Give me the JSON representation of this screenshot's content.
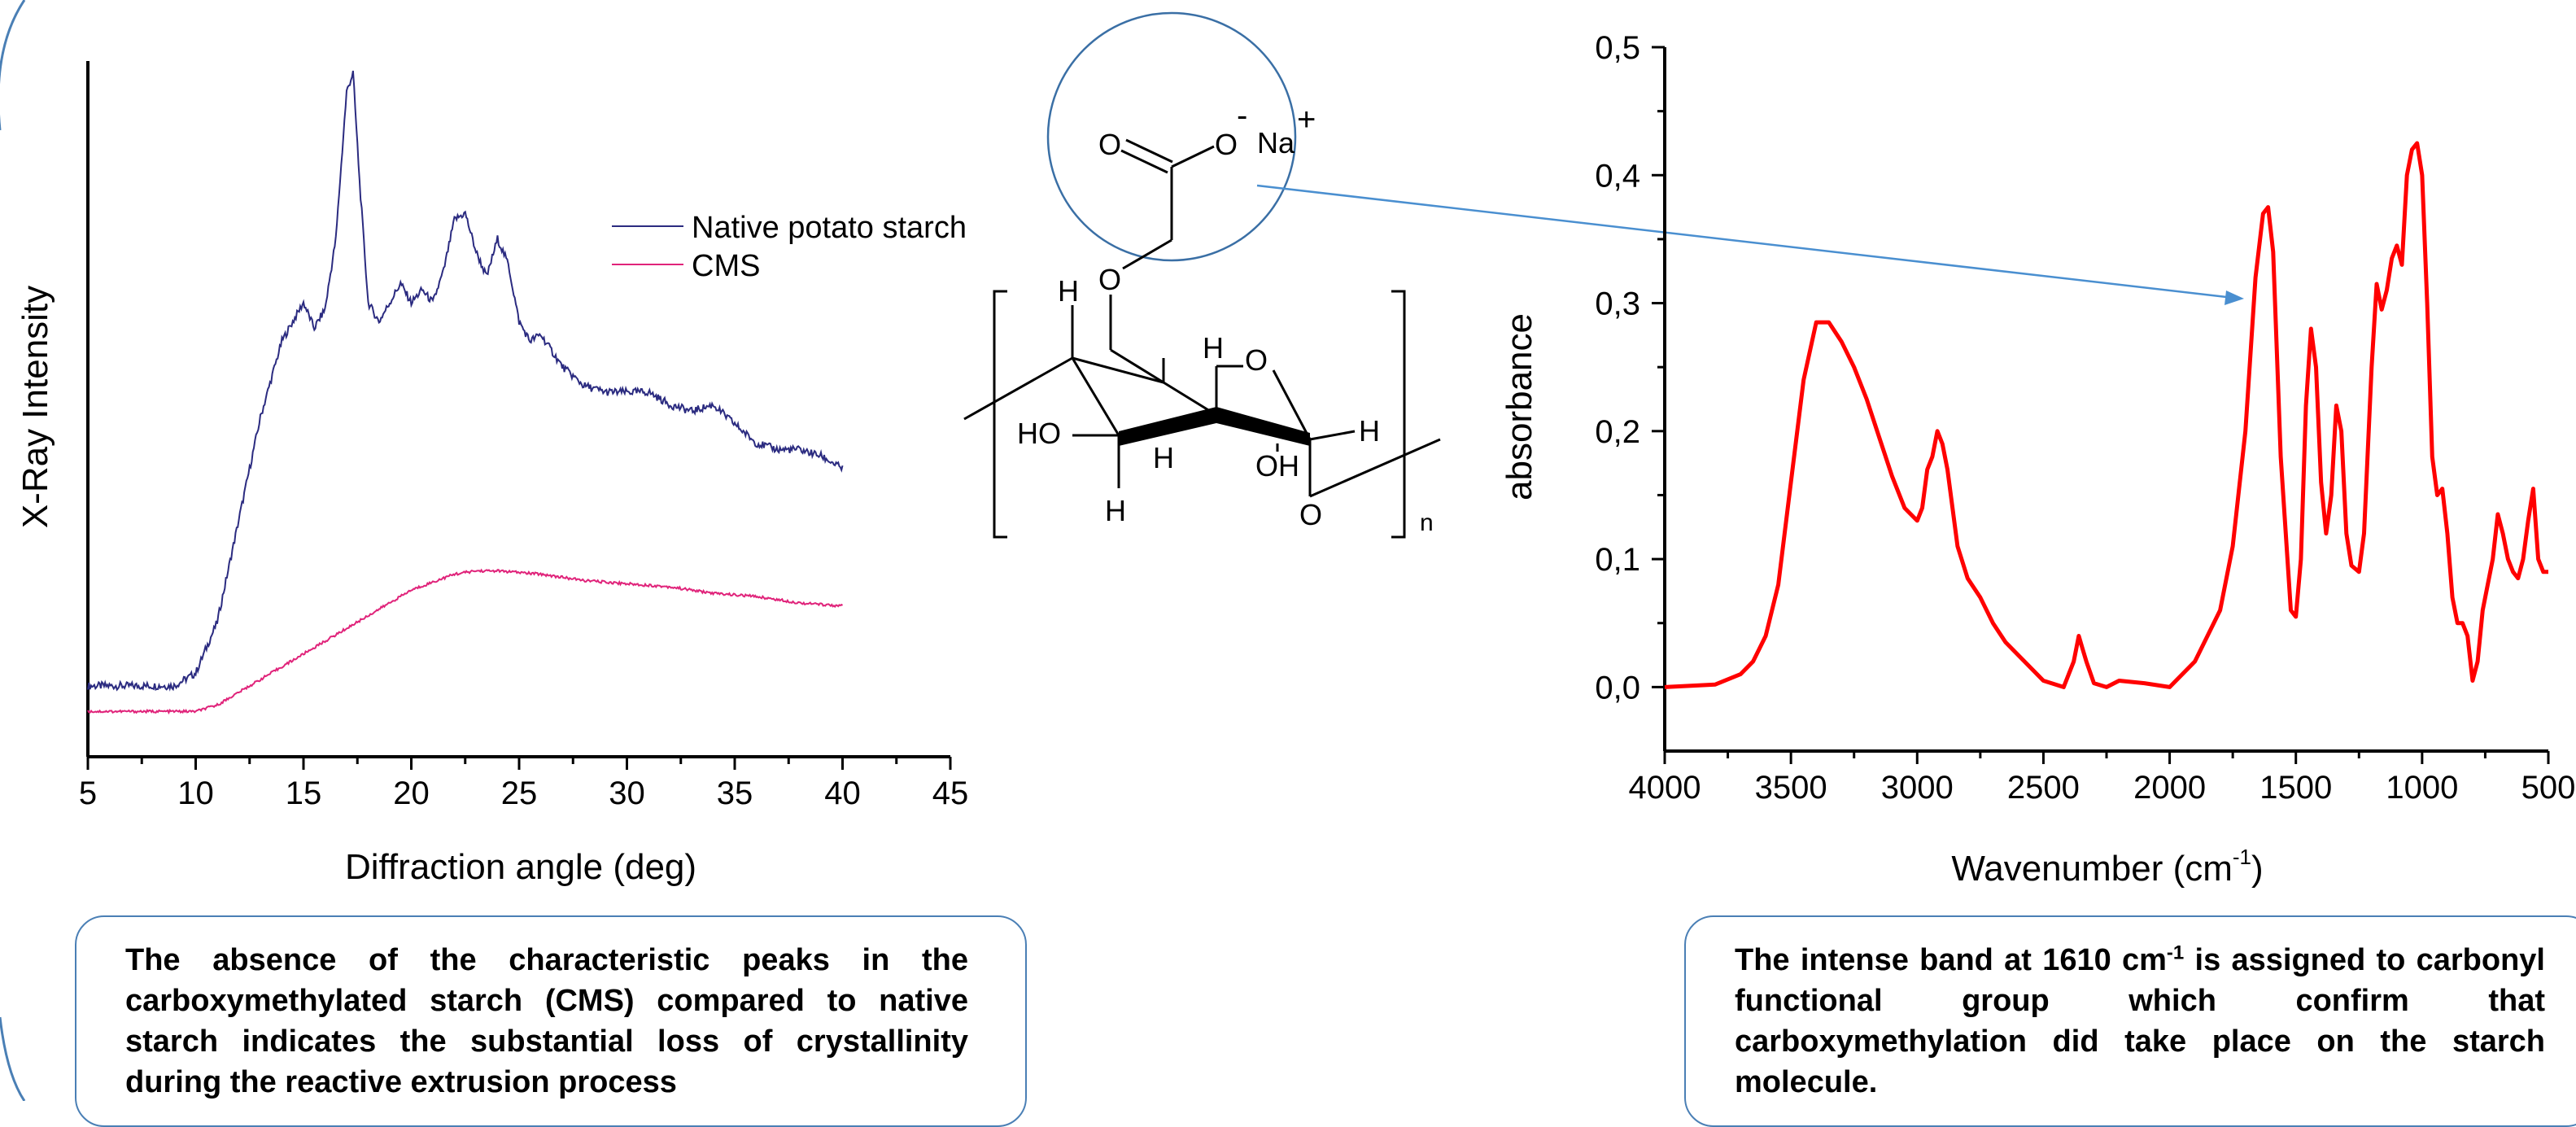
{
  "xrd": {
    "ylabel": "X-Ray Intensity",
    "xlabel": "Diffraction angle (deg)",
    "legend": [
      "Native potato starch",
      "CMS"
    ],
    "colors": {
      "native": "#2b2b80",
      "cms": "#e0237a"
    },
    "note": "The absence of the characteristic peaks in the carboxymethylated starch (CMS) compared to native starch indicates the substantial loss of crystallinity during the reactive extrusion process"
  },
  "ftir": {
    "ylabel": "absorbance",
    "xlabel_main": "Wavenumber (cm",
    "xlabel_sup": "-1",
    "xlabel_end": ")",
    "color": "#ff0000",
    "note_pre": "The intense band at 1610 cm",
    "note_sup": "-1",
    "note_post": " is assigned to carbonyl functional group which confirm that carboxymethylation did take place on the starch molecule."
  },
  "molecule": {
    "labels": {
      "o1": "O",
      "o2": "O",
      "na": "Na",
      "minus": "-",
      "plus": "+",
      "o3": "O",
      "ring_o": "O",
      "h1": "H",
      "h2": "H",
      "h3": "H",
      "h4": "H",
      "h5": "H",
      "ho": "HO",
      "oh": "OH",
      "o4": "O",
      "n": "n"
    }
  },
  "chart_data": [
    {
      "type": "line",
      "title": "",
      "xlabel": "Diffraction angle (deg)",
      "ylabel": "X-Ray Intensity",
      "xlim": [
        5,
        45
      ],
      "xticks": [
        5,
        10,
        15,
        20,
        25,
        30,
        35,
        40,
        45
      ],
      "yticks_labeled": false,
      "legend_position": "top-right",
      "series": [
        {
          "name": "Native potato starch",
          "x": [
            5,
            7,
            9,
            10,
            11,
            12,
            13,
            14,
            15,
            15.5,
            16,
            16.5,
            17,
            17.3,
            17.6,
            18,
            18.5,
            19,
            19.5,
            20,
            20.5,
            21,
            21.5,
            22,
            22.5,
            23,
            23.5,
            24,
            24.5,
            25,
            25.5,
            26,
            27,
            28,
            29,
            30,
            31,
            32,
            33,
            34,
            35,
            36,
            37,
            38,
            39,
            40
          ],
          "y": [
            0.06,
            0.06,
            0.06,
            0.08,
            0.16,
            0.32,
            0.48,
            0.6,
            0.66,
            0.62,
            0.65,
            0.76,
            0.99,
            1.02,
            0.85,
            0.66,
            0.63,
            0.66,
            0.69,
            0.66,
            0.68,
            0.66,
            0.71,
            0.79,
            0.8,
            0.74,
            0.7,
            0.76,
            0.72,
            0.63,
            0.6,
            0.61,
            0.56,
            0.53,
            0.52,
            0.52,
            0.52,
            0.5,
            0.49,
            0.5,
            0.47,
            0.44,
            0.43,
            0.43,
            0.42,
            0.4
          ]
        },
        {
          "name": "CMS",
          "x": [
            5,
            8,
            10,
            11,
            12,
            14,
            16,
            18,
            20,
            22,
            23,
            24,
            26,
            28,
            30,
            32,
            34,
            36,
            38,
            40
          ],
          "y": [
            0.02,
            0.02,
            0.02,
            0.03,
            0.05,
            0.09,
            0.13,
            0.17,
            0.21,
            0.235,
            0.24,
            0.24,
            0.235,
            0.225,
            0.22,
            0.215,
            0.205,
            0.2,
            0.19,
            0.185
          ]
        }
      ]
    },
    {
      "type": "line",
      "title": "",
      "xlabel": "Wavenumber (cm-1)",
      "ylabel": "absorbance",
      "xlim": [
        4000,
        500
      ],
      "ylim": [
        -0.05,
        0.5
      ],
      "xticks": [
        4000,
        3500,
        3000,
        2500,
        2000,
        1500,
        1000,
        500
      ],
      "yticks": [
        0.0,
        0.1,
        0.2,
        0.3,
        0.4,
        0.5
      ],
      "ytick_labels": [
        "0,0",
        "0,1",
        "0,2",
        "0,3",
        "0,4",
        "0,5"
      ],
      "series": [
        {
          "name": "",
          "x": [
            4000,
            3800,
            3700,
            3650,
            3600,
            3550,
            3500,
            3450,
            3400,
            3350,
            3300,
            3250,
            3200,
            3150,
            3100,
            3050,
            3000,
            2980,
            2960,
            2940,
            2920,
            2900,
            2880,
            2860,
            2840,
            2800,
            2750,
            2700,
            2650,
            2600,
            2500,
            2420,
            2380,
            2360,
            2345,
            2330,
            2300,
            2250,
            2200,
            2100,
            2000,
            1900,
            1800,
            1750,
            1700,
            1660,
            1630,
            1610,
            1590,
            1560,
            1520,
            1500,
            1480,
            1460,
            1440,
            1420,
            1400,
            1380,
            1360,
            1340,
            1320,
            1300,
            1280,
            1250,
            1230,
            1200,
            1180,
            1160,
            1140,
            1120,
            1100,
            1080,
            1060,
            1040,
            1020,
            1000,
            980,
            960,
            940,
            920,
            900,
            880,
            860,
            840,
            820,
            800,
            780,
            760,
            740,
            720,
            700,
            680,
            660,
            640,
            620,
            600,
            580,
            560,
            540,
            520,
            500
          ],
          "y": [
            0.0,
            0.002,
            0.01,
            0.02,
            0.04,
            0.08,
            0.16,
            0.24,
            0.285,
            0.285,
            0.27,
            0.25,
            0.225,
            0.195,
            0.165,
            0.14,
            0.13,
            0.14,
            0.17,
            0.18,
            0.2,
            0.19,
            0.17,
            0.14,
            0.11,
            0.085,
            0.07,
            0.05,
            0.035,
            0.025,
            0.005,
            0.0,
            0.02,
            0.04,
            0.03,
            0.02,
            0.003,
            0.0,
            0.005,
            0.003,
            0.0,
            0.02,
            0.06,
            0.11,
            0.2,
            0.32,
            0.37,
            0.375,
            0.34,
            0.18,
            0.06,
            0.055,
            0.1,
            0.22,
            0.28,
            0.25,
            0.16,
            0.12,
            0.15,
            0.22,
            0.2,
            0.12,
            0.095,
            0.09,
            0.12,
            0.25,
            0.315,
            0.295,
            0.31,
            0.335,
            0.345,
            0.33,
            0.4,
            0.42,
            0.425,
            0.4,
            0.3,
            0.18,
            0.15,
            0.155,
            0.12,
            0.07,
            0.05,
            0.05,
            0.04,
            0.005,
            0.02,
            0.06,
            0.08,
            0.1,
            0.135,
            0.12,
            0.1,
            0.09,
            0.085,
            0.1,
            0.13,
            0.155,
            0.1,
            0.09,
            0.09
          ]
        }
      ]
    }
  ]
}
